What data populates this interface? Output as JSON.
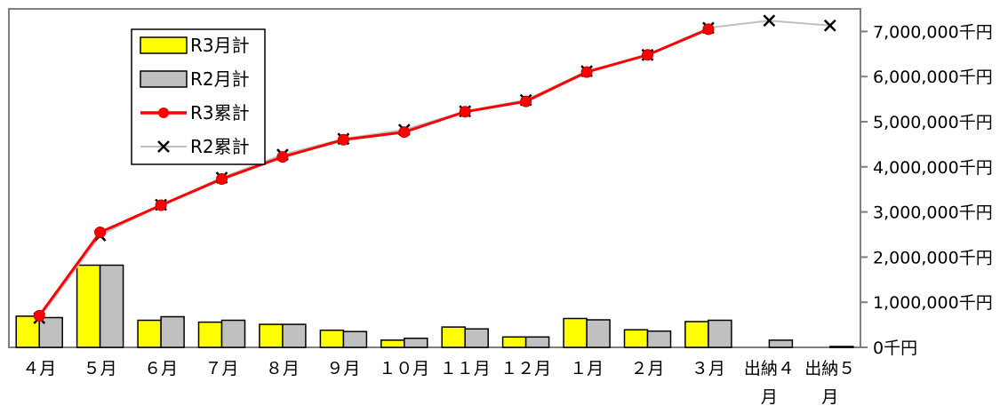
{
  "chart_data": {
    "type": "bar+line",
    "categories": [
      "４月",
      "５月",
      "６月",
      "７月",
      "８月",
      "９月",
      "１０月",
      "１１月",
      "１２月",
      "１月",
      "２月",
      "３月",
      "出納４月",
      "出納５月"
    ],
    "category_lines": [
      [
        "４月"
      ],
      [
        "５月"
      ],
      [
        "６月"
      ],
      [
        "７月"
      ],
      [
        "８月"
      ],
      [
        "９月"
      ],
      [
        "１０月"
      ],
      [
        "１１月"
      ],
      [
        "１２月"
      ],
      [
        "１月"
      ],
      [
        "２月"
      ],
      [
        "３月"
      ],
      [
        "出納４",
        "月"
      ],
      [
        "出納５",
        "月"
      ]
    ],
    "y_axis": {
      "position": "right",
      "min": 0,
      "max": 7500000,
      "ticks": [
        0,
        1000000,
        2000000,
        3000000,
        4000000,
        5000000,
        6000000,
        7000000
      ],
      "tick_labels": [
        "0千円",
        "1,000,000千円",
        "2,000,000千円",
        "3,000,000千円",
        "4,000,000千円",
        "5,000,000千円",
        "6,000,000千円",
        "7,000,000千円"
      ]
    },
    "legend_position": "top-left",
    "grid": false,
    "series": [
      {
        "name": "R3月計",
        "type": "bar",
        "color": "#ffff00",
        "values": [
          690000,
          1820000,
          600000,
          560000,
          510000,
          380000,
          160000,
          450000,
          230000,
          640000,
          390000,
          570000,
          null,
          null
        ]
      },
      {
        "name": "R2月計",
        "type": "bar",
        "color": "#c0c0c0",
        "values": [
          660000,
          1820000,
          680000,
          600000,
          510000,
          350000,
          200000,
          410000,
          230000,
          610000,
          360000,
          600000,
          160000,
          20000
        ]
      },
      {
        "name": "R3累計",
        "type": "line",
        "color": "#ff0000",
        "marker": "circle",
        "values": [
          700000,
          2550000,
          3150000,
          3730000,
          4220000,
          4600000,
          4770000,
          5220000,
          5450000,
          6100000,
          6480000,
          7050000,
          null,
          null
        ]
      },
      {
        "name": "R2累計",
        "type": "line",
        "color": "#c0c0c0",
        "marker": "x",
        "values": [
          650000,
          2480000,
          3160000,
          3760000,
          4270000,
          4620000,
          4820000,
          5230000,
          5480000,
          6120000,
          6480000,
          7080000,
          7240000,
          7130000
        ]
      }
    ]
  }
}
